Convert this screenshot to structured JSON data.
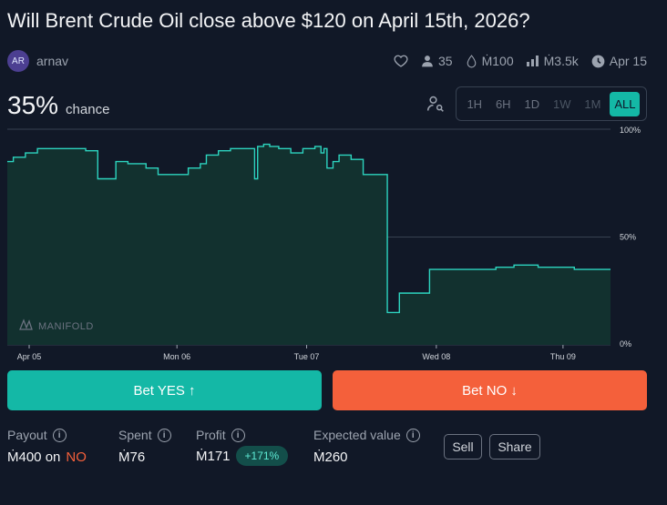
{
  "question": {
    "title": "Will Brent Crude Oil close above $120 on April 15th, 2026?"
  },
  "author": {
    "initials": "AR",
    "name": "arnav"
  },
  "stats": {
    "traders": "35",
    "liquidity": "Ṁ100",
    "volume": "Ṁ3.5k",
    "close_date": "Apr 15"
  },
  "probability": {
    "value": "35%",
    "label": "chance"
  },
  "time_filters": [
    {
      "label": "1H",
      "state": "normal"
    },
    {
      "label": "6H",
      "state": "normal"
    },
    {
      "label": "1D",
      "state": "normal"
    },
    {
      "label": "1W",
      "state": "dim"
    },
    {
      "label": "1M",
      "state": "dim"
    },
    {
      "label": "ALL",
      "state": "active"
    }
  ],
  "chart_data": {
    "type": "area",
    "x_ticks": [
      "Apr 05",
      "Mon 06",
      "Tue 07",
      "Wed 08",
      "Thu 09"
    ],
    "y_ticks": [
      "100%",
      "50%",
      "0%"
    ],
    "ylim": [
      0,
      100
    ],
    "watermark": "MANIFOLD",
    "color": "#2dd4bf",
    "fill": "#12312f",
    "x": [
      0,
      0.1,
      0.3,
      0.5,
      0.8,
      1.0,
      1.3,
      1.5,
      1.8,
      2.0,
      2.3,
      2.5,
      2.8,
      3.0,
      3.2,
      3.3,
      3.5,
      3.7,
      3.9,
      4.1,
      4.15,
      4.25,
      4.35,
      4.5,
      4.7,
      4.9,
      5.0,
      5.1,
      5.2,
      5.25,
      5.3,
      5.4,
      5.5,
      5.7,
      5.9,
      6.1,
      6.3,
      6.5,
      6.7,
      6.9,
      7.0,
      7.2,
      7.4,
      7.6,
      7.8,
      8.0,
      8.1,
      8.2,
      8.4,
      8.6,
      8.8,
      9.0,
      9.2,
      9.4,
      9.6,
      9.8,
      10.0
    ],
    "values": [
      85,
      87,
      89,
      91,
      91,
      91,
      90,
      77,
      85,
      84,
      82,
      79,
      79,
      82,
      84,
      88,
      90,
      91,
      91,
      77,
      92,
      93,
      92,
      91,
      89,
      91,
      91,
      92,
      89,
      91,
      82,
      85,
      88,
      86,
      79,
      79,
      15,
      24,
      24,
      24,
      35,
      35,
      35,
      35,
      35,
      35,
      36,
      36,
      37,
      37,
      36,
      36,
      36,
      35,
      35,
      35,
      35
    ]
  },
  "bet_yes": {
    "label": "Bet YES ↑"
  },
  "bet_no": {
    "label": "Bet NO ↓"
  },
  "position": {
    "payout_label": "Payout",
    "payout_amount": "Ṁ400 on",
    "payout_side": "NO",
    "spent_label": "Spent",
    "spent_value": "Ṁ76",
    "profit_label": "Profit",
    "profit_value": "Ṁ171",
    "profit_pct": "+171%",
    "expected_label": "Expected value",
    "expected_value": "Ṁ260"
  },
  "actions": {
    "sell": "Sell",
    "share": "Share"
  }
}
